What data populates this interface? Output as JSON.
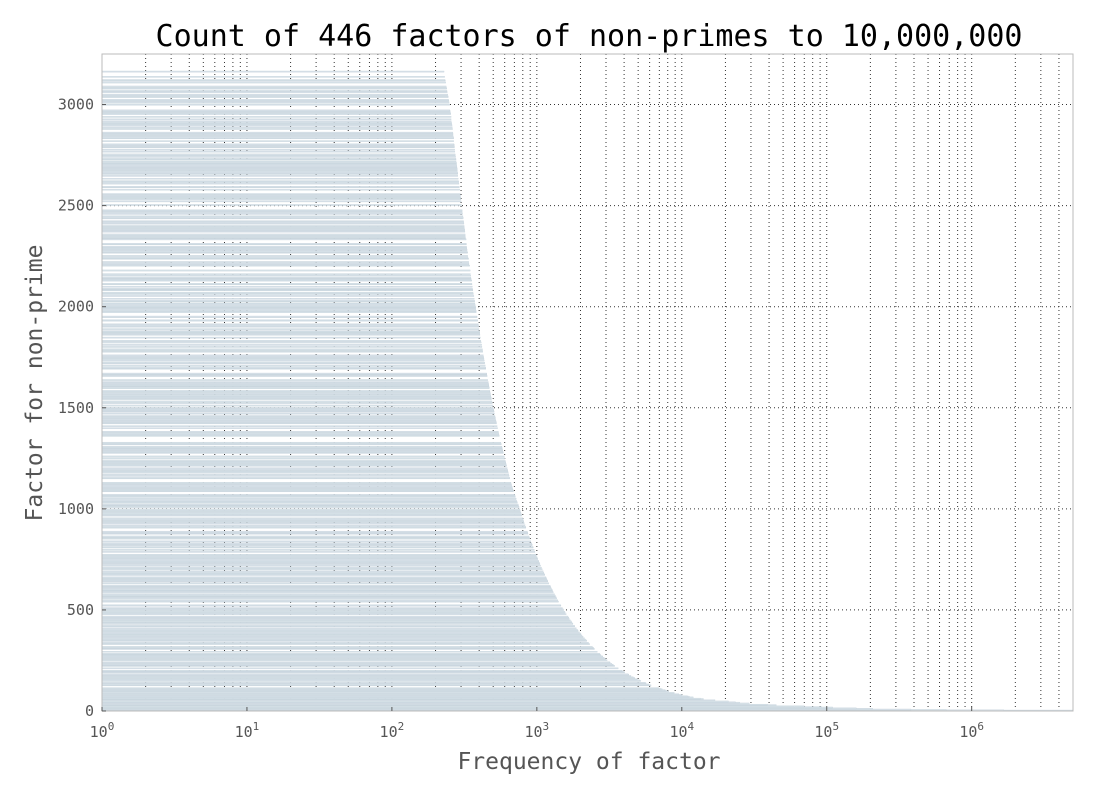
{
  "chart_data": {
    "type": "bar",
    "orientation": "horizontal",
    "title": "Count of 446 factors of non-primes to 10,000,000",
    "xlabel": "Frequency of factor",
    "ylabel": "Factor for non-prime",
    "x_scale": "log",
    "xlim": [
      1,
      5000000
    ],
    "ylim": [
      0,
      3250
    ],
    "x_ticks": [
      {
        "base": "10",
        "exp": "0"
      },
      {
        "base": "10",
        "exp": "1"
      },
      {
        "base": "10",
        "exp": "2"
      },
      {
        "base": "10",
        "exp": "3"
      },
      {
        "base": "10",
        "exp": "4"
      },
      {
        "base": "10",
        "exp": "5"
      },
      {
        "base": "10",
        "exp": "6"
      }
    ],
    "y_ticks": [
      "0",
      "500",
      "1000",
      "1500",
      "2000",
      "2500",
      "3000"
    ],
    "grid": "dotted major and minor",
    "legend": "none",
    "bar_color": "#d7e1e8",
    "bar_edge_color": "#c2d0d9",
    "series": [
      {
        "factor": [
          2,
          3,
          5,
          7,
          11,
          13,
          17,
          19,
          23,
          29,
          31,
          37,
          41,
          43,
          47,
          53,
          59,
          61,
          67,
          71,
          73,
          79,
          83,
          89,
          97,
          101,
          103,
          107,
          109,
          113,
          127,
          131,
          137,
          139,
          149,
          151,
          157,
          163,
          167,
          173,
          179,
          181,
          191,
          193,
          197,
          199,
          211,
          223,
          227,
          229,
          233,
          239,
          241,
          251,
          257,
          263,
          269,
          271,
          277,
          281,
          283,
          293,
          307,
          311,
          313,
          317,
          331,
          337,
          347,
          349,
          353,
          359,
          367,
          373,
          379,
          383,
          389,
          397,
          401,
          409,
          419,
          421,
          431,
          433,
          439,
          443,
          449,
          457,
          461,
          463,
          467,
          479,
          487,
          491,
          499,
          503,
          509,
          521,
          523,
          541,
          547,
          557,
          563,
          569,
          571,
          577,
          587,
          593,
          599,
          601,
          607,
          613,
          617,
          619,
          631,
          641,
          643,
          647,
          653,
          659,
          661,
          673,
          677,
          683,
          691,
          701,
          709,
          719,
          727,
          733,
          739,
          743,
          751,
          757,
          761,
          769,
          773,
          787,
          797,
          809,
          811,
          821,
          823,
          827,
          829,
          839,
          853,
          857,
          859,
          863,
          877,
          881,
          883,
          887,
          907,
          911,
          919,
          929,
          937,
          941,
          947,
          953,
          967,
          971,
          977,
          983,
          991,
          997,
          1009,
          1013,
          1019,
          1021,
          1031,
          1033,
          1039,
          1049,
          1051,
          1061,
          1063,
          1069,
          1087,
          1091,
          1093,
          1097,
          1103,
          1109,
          1117,
          1123,
          1129,
          1151,
          1153,
          1163,
          1171,
          1181,
          1187,
          1193,
          1201,
          1213,
          1217,
          1223,
          1229,
          1231,
          1237,
          1249,
          1259,
          1277,
          1279,
          1283,
          1289,
          1291,
          1297,
          1301,
          1303,
          1307,
          1319,
          1321,
          1327,
          1361,
          1367,
          1373,
          1381,
          1399,
          1409,
          1423,
          1427,
          1429,
          1433,
          1439,
          1447,
          1451,
          1453,
          1459,
          1471,
          1481,
          1483,
          1487,
          1489,
          1493,
          1499,
          1511,
          1523,
          1531,
          1543,
          1549,
          1553,
          1559,
          1567,
          1571,
          1579,
          1583,
          1597,
          1601,
          1607,
          1609,
          1613,
          1619,
          1621,
          1627,
          1637,
          1657,
          1663,
          1667,
          1669,
          1693,
          1697,
          1699,
          1709,
          1721,
          1723,
          1733,
          1741,
          1747,
          1753,
          1759,
          1777,
          1783,
          1787,
          1789,
          1801,
          1811,
          1823,
          1831,
          1847,
          1861,
          1867,
          1871,
          1873,
          1877,
          1879,
          1889,
          1901,
          1907,
          1913,
          1931,
          1933,
          1949,
          1951,
          1973,
          1979,
          1987,
          1993,
          1997,
          1999,
          2003,
          2011,
          2017,
          2027,
          2029,
          2039,
          2053,
          2063,
          2069,
          2081,
          2083,
          2087,
          2089,
          2099,
          2111,
          2113,
          2129,
          2131,
          2137,
          2141,
          2143,
          2153,
          2161,
          2179,
          2203,
          2207,
          2213,
          2221,
          2237,
          2239,
          2243,
          2251,
          2267,
          2269,
          2273,
          2281,
          2287,
          2293,
          2297,
          2309,
          2311,
          2333,
          2339,
          2341,
          2347,
          2351,
          2357,
          2371,
          2377,
          2381,
          2383,
          2389,
          2393,
          2399,
          2411,
          2417,
          2423,
          2437,
          2441,
          2447,
          2459,
          2467,
          2473,
          2477,
          2503,
          2521,
          2531,
          2539,
          2543,
          2549,
          2551,
          2557,
          2579,
          2591,
          2593,
          2609,
          2617,
          2621,
          2633,
          2647,
          2657,
          2659,
          2663,
          2671,
          2677,
          2683,
          2687,
          2689,
          2693,
          2699,
          2707,
          2711,
          2713,
          2719,
          2729,
          2731,
          2741,
          2749,
          2753,
          2767,
          2777,
          2789,
          2791,
          2797,
          2801,
          2803,
          2819,
          2833,
          2837,
          2843,
          2851,
          2857,
          2861,
          2879,
          2887,
          2897,
          2903,
          2909,
          2917,
          2927,
          2939,
          2953,
          2957,
          2963,
          2969,
          2971,
          2999,
          3001,
          3011,
          3019,
          3023,
          3037,
          3041,
          3049,
          3061,
          3067,
          3079,
          3083,
          3089,
          3109,
          3119,
          3121,
          3137,
          3163
        ],
        "frequency": [
          4999999,
          1666666,
          666666,
          380952,
          207792,
          159840,
          110010,
          92461,
          69891,
          44879,
          38952,
          29216,
          25140,
          23435,
          20979,
          16943,
          14102,
          13442,
          12013,
          11263,
          10932,
          10045,
          9538,
          8882,
          8134,
          7814,
          7645,
          7341,
          7199,
          6923,
          6134,
          5935,
          5669,
          5585,
          5201,
          5129,
          4929,
          4743,
          4625,
          4462,
          4311,
          4262,
          4036,
          3990,
          3905,
          3863,
          3638,
          3441,
          3378,
          3349,
          3291,
          3207,
          3180,
          3052,
          2981,
          2913,
          2848,
          2827,
          2764,
          2724,
          2704,
          2610,
          2496,
          2463,
          2447,
          2416,
          2313,
          2272,
          2206,
          2193,
          2168,
          2131,
          2084,
          2050,
          2018,
          1997,
          1967,
          1926,
          1907,
          1870,
          1825,
          1816,
          1774,
          1765,
          1742,
          1726,
          1702,
          1672,
          1658,
          1651,
          1636,
          1594,
          1569,
          1556,
          1531,
          1519,
          1501,
          1466,
          1460,
          1411,
          1396,
          1370,
          1357,
          1342,
          1337,
          1323,
          1300,
          1288,
          1275,
          1271,
          1258,
          1246,
          1238,
          1234,
          1211,
          1191,
          1188,
          1180,
          1169,
          1159,
          1155,
          1134,
          1128,
          1118,
          1105,
          1089,
          1077,
          1061,
          1050,
          1042,
          1033,
          1027,
          1016,
          1008,
          1003,
          992,
          988,
          970,
          958,
          943,
          941,
          929,
          927,
          922,
          920,
          909,
          894,
          889,
          887,
          883,
          869,
          865,
          863,
          859,
          840,
          836,
          829,
          820,
          813,
          809,
          804,
          799,
          787,
          784,
          779,
          775,
          768,
          764,
          754,
          750,
          745,
          743,
          734,
          733,
          727,
          719,
          718,
          709,
          708,
          704,
          690,
          687,
          686,
          683,
          679,
          675,
          670,
          666,
          663,
          650,
          649,
          643,
          639,
          634,
          631,
          628,
          624,
          618,
          616,
          613,
          610,
          609,
          606,
          600,
          596,
          587,
          586,
          584,
          581,
          580,
          578,
          576,
          575,
          574,
          568,
          568,
          565,
          551,
          548,
          546,
          543,
          536,
          532,
          527,
          525,
          525,
          523,
          521,
          518,
          517,
          516,
          514,
          510,
          507,
          506,
          504,
          504,
          502,
          500,
          496,
          493,
          490,
          486,
          484,
          483,
          481,
          479,
          478,
          475,
          474,
          470,
          469,
          467,
          466,
          466,
          464,
          463,
          462,
          459,
          454,
          452,
          451,
          451,
          444,
          443,
          443,
          440,
          437,
          436,
          434,
          432,
          430,
          429,
          427,
          423,
          422,
          421,
          421,
          418,
          416,
          413,
          411,
          408,
          405,
          404,
          403,
          403,
          402,
          402,
          399,
          397,
          396,
          394,
          391,
          390,
          387,
          386,
          382,
          381,
          379,
          378,
          378,
          377,
          377,
          375,
          373,
          373,
          371,
          370,
          368,
          365,
          363,
          362,
          360,
          360,
          359,
          359,
          357,
          355,
          355,
          352,
          352,
          351,
          350,
          350,
          348,
          347,
          344,
          340,
          340,
          339,
          338,
          335,
          335,
          334,
          333,
          331,
          331,
          330,
          329,
          328,
          327,
          327,
          325,
          325,
          322,
          321,
          321,
          320,
          320,
          319,
          318,
          317,
          317,
          316,
          316,
          315,
          314,
          313,
          312,
          310,
          310,
          309,
          307,
          306,
          305,
          305,
          302,
          300,
          299,
          298,
          297,
          297,
          296,
          296,
          294,
          292,
          292,
          290,
          289,
          288,
          287,
          285,
          284,
          284,
          284,
          283,
          282,
          282,
          281,
          281,
          280,
          280,
          279,
          279,
          278,
          277,
          277,
          276,
          275,
          274,
          273,
          272,
          271,
          270,
          270,
          269,
          269,
          268,
          267,
          267,
          266,
          265,
          264,
          264,
          263,
          262,
          261,
          260,
          259,
          258,
          257,
          256,
          256,
          255,
          254,
          253,
          252,
          251,
          251,
          249,
          248,
          247,
          246,
          245,
          244,
          243,
          241,
          240,
          239,
          238,
          237,
          235,
          234,
          232,
          231,
          229,
          228,
          227
        ]
      }
    ]
  }
}
